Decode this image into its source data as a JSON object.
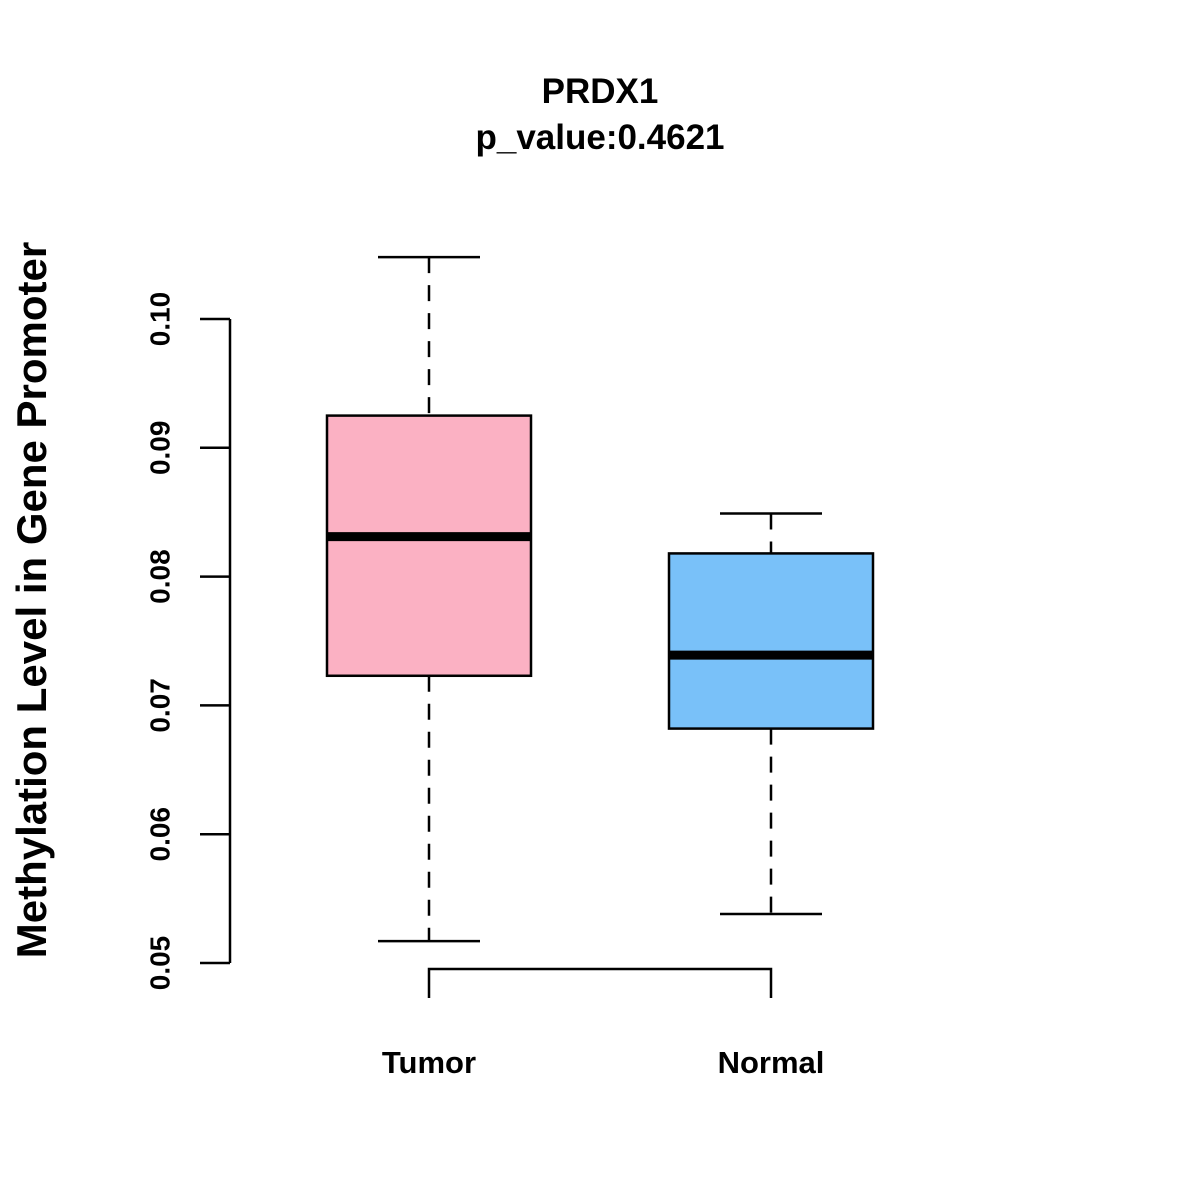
{
  "chart_data": {
    "type": "boxplot",
    "title": "PRDX1",
    "subtitle": "p_value:0.4621",
    "xlabel": "",
    "ylabel": "Methylation Level in Gene Promoter",
    "ylim": [
      0.05,
      0.1
    ],
    "yticks": [
      0.05,
      0.06,
      0.07,
      0.08,
      0.09,
      0.1
    ],
    "ytick_labels": [
      "0.05",
      "0.06",
      "0.07",
      "0.08",
      "0.09",
      "0.10"
    ],
    "categories": [
      "Tumor",
      "Normal"
    ],
    "boxes": [
      {
        "name": "Tumor",
        "min": 0.0517,
        "q1": 0.0723,
        "median": 0.0831,
        "q3": 0.0925,
        "max": 0.1048,
        "color": "#FBB1C3"
      },
      {
        "name": "Normal",
        "min": 0.0538,
        "q1": 0.0682,
        "median": 0.0739,
        "q3": 0.0818,
        "max": 0.0849,
        "color": "#79C1F9"
      }
    ],
    "comparison_bracket": {
      "from": "Tumor",
      "to": "Normal"
    }
  }
}
